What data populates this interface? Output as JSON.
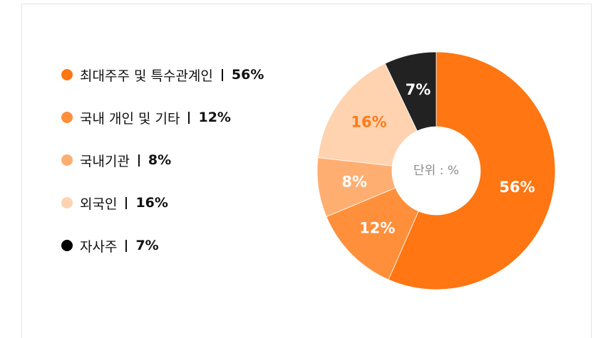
{
  "chart_data": {
    "type": "pie",
    "center_label": "단위 : %",
    "categories": [
      "최대주주 및 특수관계인",
      "국내 개인 및 기타",
      "국내기관",
      "외국인",
      "자사주"
    ],
    "values": [
      56,
      12,
      8,
      16,
      7
    ],
    "value_labels": [
      "56%",
      "12%",
      "8%",
      "16%",
      "7%"
    ],
    "colors": [
      "#ff7612",
      "#ff8f3b",
      "#ffae72",
      "#ffd3b0",
      "#222222"
    ],
    "label_colors": [
      "#ffffff",
      "#ffffff",
      "#ffffff",
      "#ff7a1a",
      "#ffffff"
    ],
    "legend_colors": [
      "#ff7612",
      "#ff8f3b",
      "#ffae72",
      "#ffd3b0",
      "#000000"
    ]
  }
}
